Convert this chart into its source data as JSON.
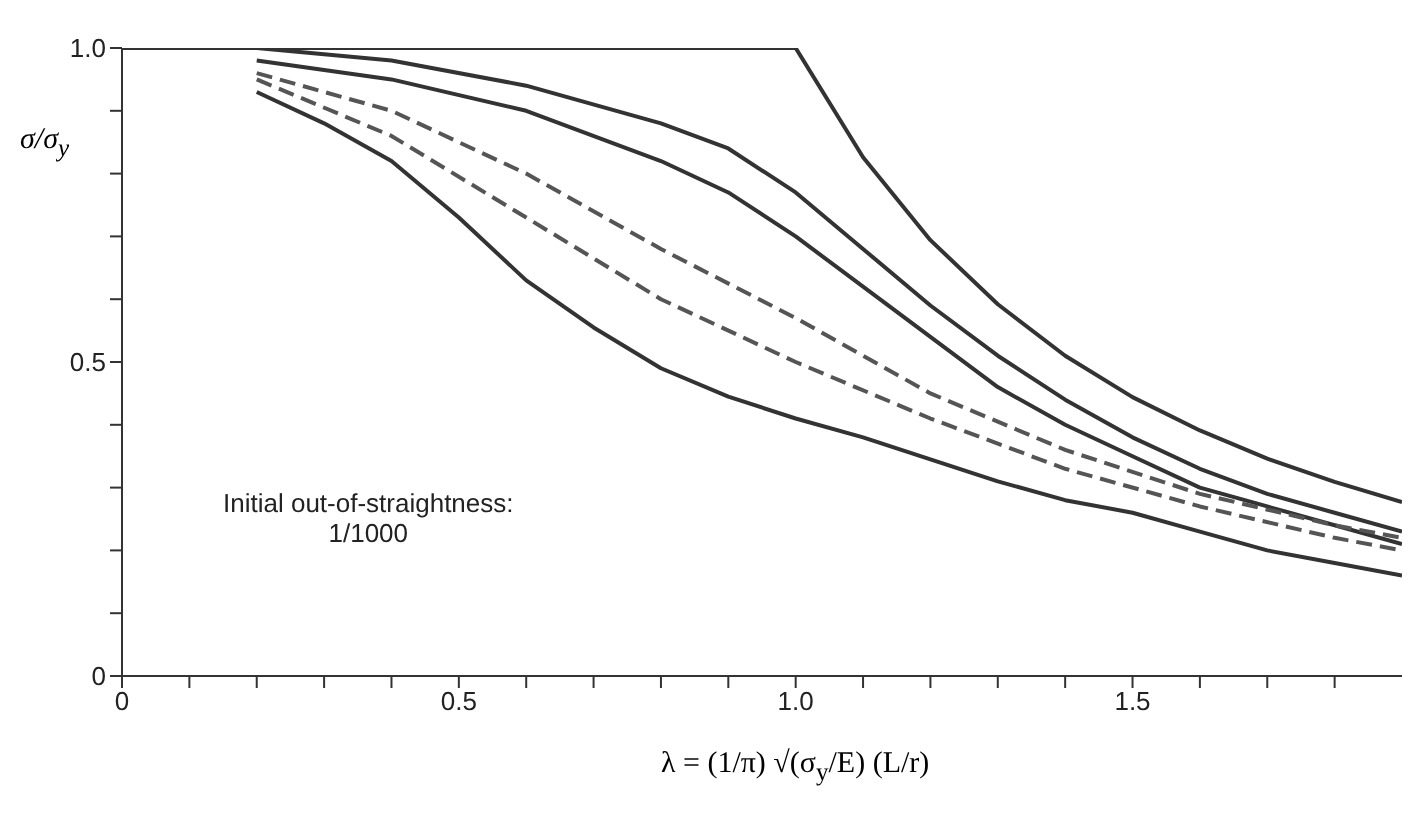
{
  "chart_data": {
    "type": "line",
    "xlabel": "λ = (1/π) √(σ$_{y}$/E) (L/r)",
    "ylabel": "σ/σ$_{y}$",
    "annotations": [
      "Initial out-of-straightness:\n1/1000"
    ],
    "xlim": [
      0,
      1.9
    ],
    "xticks": [
      0,
      {
        "value": 0.1,
        "label": null
      },
      {
        "value": 0.2,
        "label": null
      },
      {
        "value": 0.3,
        "label": null
      },
      {
        "value": 0.4,
        "label": null
      },
      0.5,
      {
        "value": 0.6,
        "label": null
      },
      {
        "value": 0.7,
        "label": null
      },
      {
        "value": 0.8,
        "label": null
      },
      {
        "value": 0.9,
        "label": null
      },
      {
        "value": 1,
        "label": "1.0"
      },
      {
        "value": 1.1,
        "label": null
      },
      {
        "value": 1.2,
        "label": null
      },
      {
        "value": 1.3,
        "label": null
      },
      {
        "value": 1.4,
        "label": null
      },
      1.5,
      {
        "value": 1.6,
        "label": null
      },
      {
        "value": 1.7,
        "label": null
      },
      {
        "value": 1.8,
        "label": null
      }
    ],
    "ylim": [
      0,
      1
    ],
    "yticks": [
      0,
      {
        "value": 0.1,
        "label": null
      },
      {
        "value": 0.2,
        "label": null
      },
      {
        "value": 0.3,
        "label": null
      },
      {
        "value": 0.4,
        "label": null
      },
      0.5,
      {
        "value": 0.6,
        "label": null
      },
      {
        "value": 0.7,
        "label": null
      },
      {
        "value": 0.8,
        "label": null
      },
      {
        "value": 0.9,
        "label": null
      },
      {
        "value": 1,
        "label": "1.0"
      }
    ],
    "grid": false,
    "marker": "none",
    "series": [
      {
        "color": "#333333",
        "line_style": "solid",
        "x": [
          0,
          1,
          1.1,
          1.2,
          1.3,
          1.4,
          1.5,
          1.6,
          1.7,
          1.8,
          1.9
        ],
        "values": [
          1,
          1,
          0.826,
          0.694,
          0.592,
          0.51,
          0.444,
          0.391,
          0.346,
          0.309,
          0.277
        ]
      },
      {
        "color": "#333333",
        "line_style": "solid",
        "x": [
          0.2,
          0.4,
          0.6,
          0.8,
          0.9,
          1,
          1.1,
          1.2,
          1.3,
          1.4,
          1.5,
          1.6,
          1.7,
          1.8,
          1.9
        ],
        "values": [
          1,
          0.98,
          0.94,
          0.88,
          0.84,
          0.77,
          0.68,
          0.59,
          0.51,
          0.44,
          0.38,
          0.33,
          0.29,
          0.26,
          0.23
        ]
      },
      {
        "color": "#333333",
        "line_style": "solid",
        "x": [
          0.2,
          0.4,
          0.6,
          0.8,
          0.9,
          1,
          1.1,
          1.2,
          1.3,
          1.4,
          1.5,
          1.6,
          1.7,
          1.8,
          1.9
        ],
        "values": [
          0.98,
          0.95,
          0.9,
          0.82,
          0.77,
          0.7,
          0.62,
          0.54,
          0.46,
          0.4,
          0.35,
          0.3,
          0.27,
          0.24,
          0.21
        ]
      },
      {
        "color": "#555555",
        "line_style": "dashed",
        "x": [
          0.2,
          0.4,
          0.6,
          0.8,
          1,
          1.2,
          1.4,
          1.6,
          1.8,
          1.9
        ],
        "values": [
          0.96,
          0.9,
          0.8,
          0.68,
          0.57,
          0.45,
          0.36,
          0.29,
          0.24,
          0.22
        ]
      },
      {
        "color": "#555555",
        "line_style": "dashed",
        "x": [
          0.2,
          0.4,
          0.6,
          0.8,
          1,
          1.2,
          1.4,
          1.6,
          1.8,
          1.9
        ],
        "values": [
          0.95,
          0.86,
          0.73,
          0.6,
          0.5,
          0.41,
          0.33,
          0.27,
          0.22,
          0.2
        ]
      },
      {
        "color": "#333333",
        "line_style": "solid",
        "x": [
          0.2,
          0.3,
          0.4,
          0.5,
          0.6,
          0.7,
          0.8,
          0.9,
          1,
          1.1,
          1.2,
          1.3,
          1.4,
          1.5,
          1.6,
          1.7,
          1.8,
          1.9
        ],
        "values": [
          0.93,
          0.88,
          0.82,
          0.73,
          0.63,
          0.555,
          0.49,
          0.445,
          0.41,
          0.38,
          0.345,
          0.31,
          0.28,
          0.26,
          0.23,
          0.2,
          0.18,
          0.16
        ]
      }
    ]
  }
}
